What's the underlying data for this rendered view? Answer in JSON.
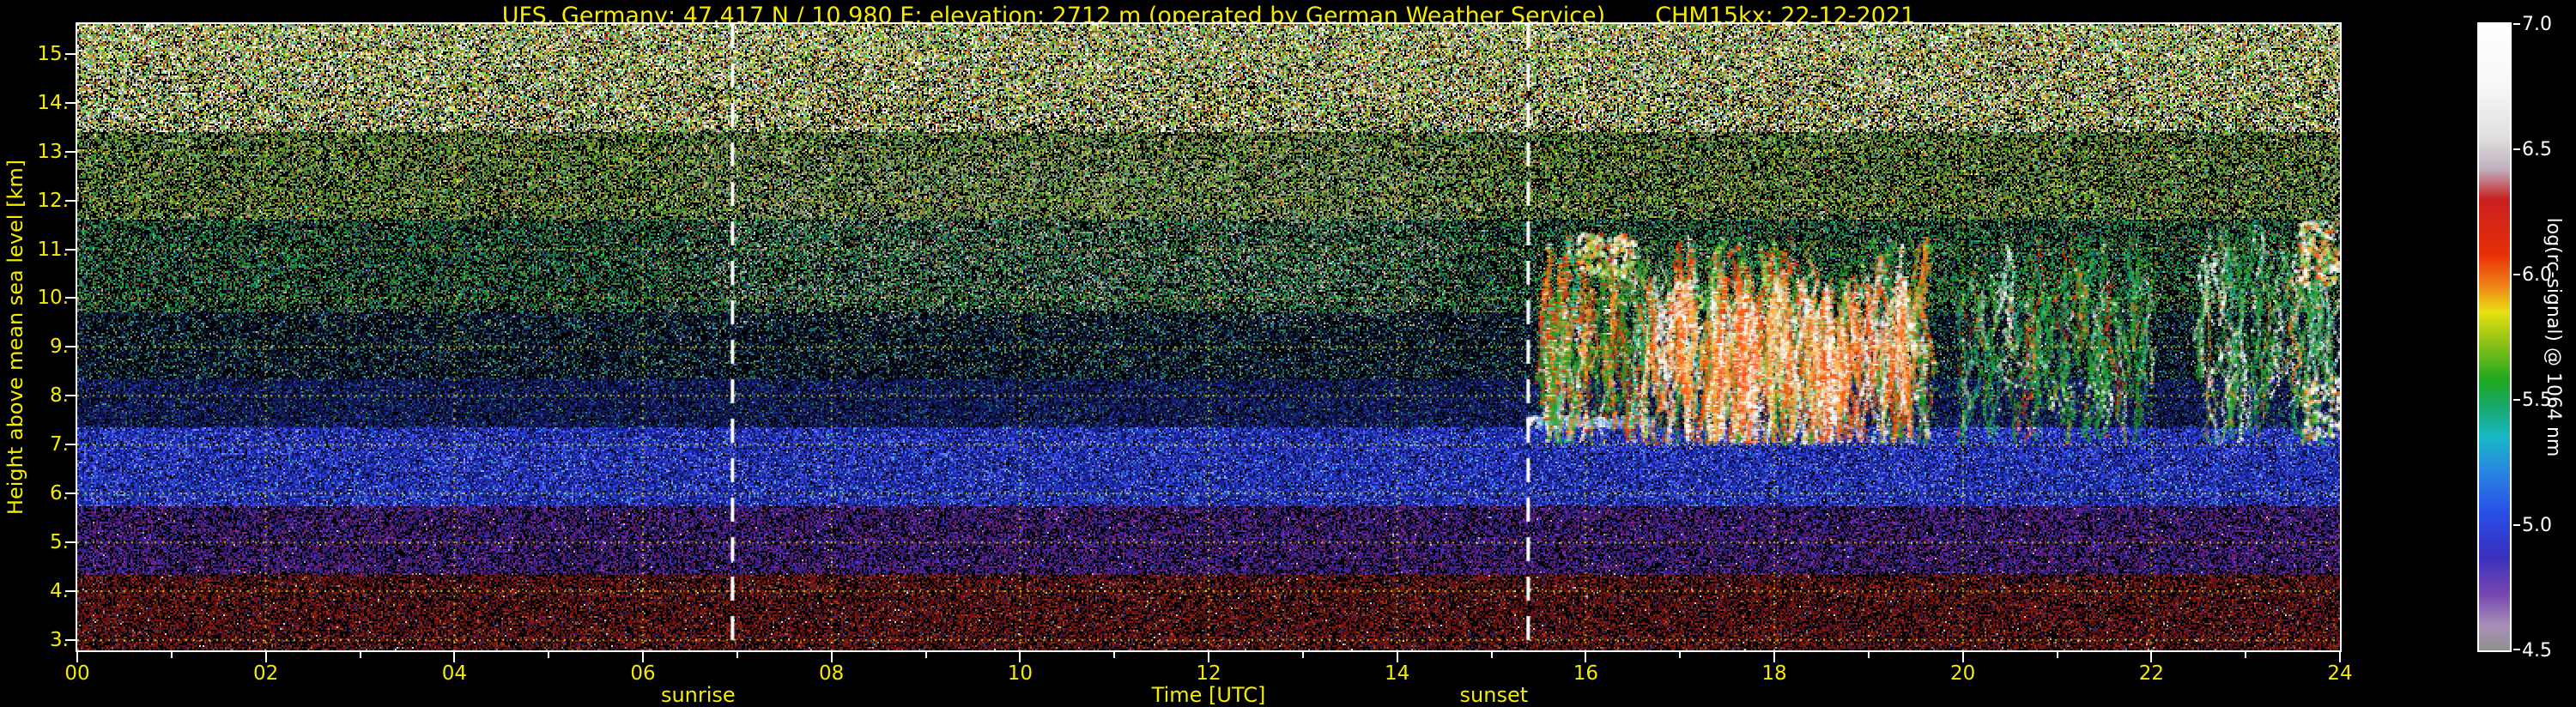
{
  "header": {
    "title": "UFS, Germany; 47.417 N / 10.980 E; elevation: 2712 m  (operated by German Weather Service)",
    "device_date": "CHM15kx: 22-12-2021"
  },
  "colors": {
    "background": "#000000",
    "text_yellow": "#f6ec00",
    "text_white": "#ffffff",
    "frame": "#ffffff",
    "grid": "#eee400",
    "sun_line": "#ffffff"
  },
  "chart_data": {
    "type": "heatmap",
    "title": "UFS, Germany; 47.417 N / 10.980 E; elevation: 2712 m  (operated by German Weather Service)",
    "instrument_date": "CHM15kx: 22-12-2021",
    "xlabel": "Time [UTC]",
    "ylabel": "Height above mean sea level [km]",
    "xlim": [
      0,
      24
    ],
    "ylim": [
      2.79,
      15.61
    ],
    "x_ticks": [
      {
        "v": 0,
        "label": "00"
      },
      {
        "v": 2,
        "label": "02"
      },
      {
        "v": 4,
        "label": "04"
      },
      {
        "v": 6,
        "label": "06"
      },
      {
        "v": 8,
        "label": "08"
      },
      {
        "v": 10,
        "label": "10"
      },
      {
        "v": 12,
        "label": "12"
      },
      {
        "v": 14,
        "label": "14"
      },
      {
        "v": 16,
        "label": "16"
      },
      {
        "v": 18,
        "label": "18"
      },
      {
        "v": 20,
        "label": "20"
      },
      {
        "v": 22,
        "label": "22"
      },
      {
        "v": 24,
        "label": "24"
      }
    ],
    "y_ticks": [
      {
        "v": 15,
        "label": "15."
      },
      {
        "v": 14,
        "label": "14."
      },
      {
        "v": 13,
        "label": "13."
      },
      {
        "v": 12,
        "label": "12."
      },
      {
        "v": 11,
        "label": "11."
      },
      {
        "v": 10,
        "label": "10."
      },
      {
        "v": 9,
        "label": "9."
      },
      {
        "v": 8,
        "label": "8."
      },
      {
        "v": 7,
        "label": "7."
      },
      {
        "v": 6,
        "label": "6."
      },
      {
        "v": 5,
        "label": "5."
      },
      {
        "v": 4,
        "label": "4."
      },
      {
        "v": 3,
        "label": "3."
      }
    ],
    "grid": {
      "style": "dotted",
      "color": "#eee400",
      "x_step_hours": 2,
      "y_step_km": 1
    },
    "sun": {
      "sunrise_label": "sunrise",
      "sunset_label": "sunset",
      "sunrise_utc": 6.95,
      "sunset_utc": 15.39
    },
    "colorbar": {
      "label": "log(rc-signal) @ 1064 nm",
      "range": [
        4.5,
        7.0
      ],
      "ticks": [
        {
          "v": 7.0,
          "label": "7.0"
        },
        {
          "v": 6.5,
          "label": "6.5"
        },
        {
          "v": 6.0,
          "label": "6.0"
        },
        {
          "v": 5.5,
          "label": "5.5"
        },
        {
          "v": 5.0,
          "label": "5.0"
        },
        {
          "v": 4.5,
          "label": "4.5"
        }
      ],
      "stops": [
        [
          4.5,
          "#909090"
        ],
        [
          4.6,
          "#a890b8"
        ],
        [
          4.72,
          "#7848b0"
        ],
        [
          4.88,
          "#3830c0"
        ],
        [
          5.05,
          "#2850e8"
        ],
        [
          5.22,
          "#2888e0"
        ],
        [
          5.35,
          "#18b8c8"
        ],
        [
          5.48,
          "#18a868"
        ],
        [
          5.58,
          "#20a820"
        ],
        [
          5.72,
          "#88c018"
        ],
        [
          5.85,
          "#e8e010"
        ],
        [
          5.95,
          "#f08818"
        ],
        [
          6.08,
          "#e83008"
        ],
        [
          6.3,
          "#c82020"
        ],
        [
          6.42,
          "#c0b0c0"
        ],
        [
          6.55,
          "#e0e0e0"
        ],
        [
          6.75,
          "#f8f8f8"
        ],
        [
          7.0,
          "#ffffff"
        ]
      ]
    },
    "features": [
      "background noise over full column before ~15:30 UTC (clear sky)",
      "broken mid-level cloud and virga from ~15:30 to 24:00 UTC between 7 and 11.5 km",
      "blue aerosol band ~5.8-7.3 km, purple band ~4.3-5.7 km, dark red noise below ~4.3 km",
      "daylight noise enhancement ~09:00-15:00 UTC between ~9.5 and 13.5 km"
    ],
    "render": {
      "seed": 20211222,
      "noise_bands": [
        {
          "h": [
            2.79,
            4.35
          ],
          "density": 0.62,
          "palette": [
            [
              "#701008",
              5
            ],
            [
              "#8a2810",
              2
            ],
            [
              "#500a28",
              2
            ],
            [
              "#282868",
              1
            ],
            [
              "#806050",
              0.5
            ],
            [
              "#b0b0b0",
              0.12
            ]
          ]
        },
        {
          "h": [
            4.35,
            5.75
          ],
          "density": 0.68,
          "palette": [
            [
              "#481878",
              3
            ],
            [
              "#682898",
              2
            ],
            [
              "#2828a0",
              2
            ],
            [
              "#781848",
              1
            ],
            [
              "#181858",
              1.5
            ],
            [
              "#a898c0",
              0.12
            ]
          ]
        },
        {
          "h": [
            5.75,
            7.35
          ],
          "density": 0.93,
          "palette": [
            [
              "#2838c8",
              4
            ],
            [
              "#1828a0",
              3
            ],
            [
              "#4858e0",
              2
            ],
            [
              "#7888e8",
              0.7
            ],
            [
              "#18a0c0",
              0.3
            ],
            [
              "#101878",
              2
            ]
          ]
        },
        {
          "h": [
            7.35,
            8.35
          ],
          "density": 0.78,
          "palette": [
            [
              "#141e6e",
              3
            ],
            [
              "#0c1448",
              3
            ],
            [
              "#2838a0",
              1
            ],
            [
              "#105858",
              0.4
            ],
            [
              "#187838",
              0.3
            ],
            [
              "#606878",
              0.2
            ]
          ]
        },
        {
          "h": [
            8.35,
            9.7
          ],
          "density": 0.58,
          "palette": [
            [
              "#0c1438",
              3
            ],
            [
              "#186038",
              1
            ],
            [
              "#188080",
              0.8
            ],
            [
              "#283878",
              1
            ],
            [
              "#607828",
              0.3
            ],
            [
              "#888888",
              0.25
            ]
          ]
        },
        {
          "h": [
            9.7,
            11.6
          ],
          "density": 0.55,
          "palette": [
            [
              "#187828",
              2
            ],
            [
              "#28a048",
              1
            ],
            [
              "#187878",
              1
            ],
            [
              "#786028",
              0.5
            ],
            [
              "#282868",
              0.8
            ],
            [
              "#909090",
              0.35
            ],
            [
              "#a83828",
              0.2
            ]
          ]
        },
        {
          "h": [
            11.6,
            13.4
          ],
          "density": 0.62,
          "palette": [
            [
              "#388828",
              3
            ],
            [
              "#78a028",
              2
            ],
            [
              "#a08838",
              1
            ],
            [
              "#888888",
              1
            ],
            [
              "#a83828",
              0.4
            ],
            [
              "#38a0a0",
              0.5
            ],
            [
              "#c8c878",
              0.4
            ]
          ]
        },
        {
          "h": [
            13.4,
            15.61
          ],
          "density": 0.72,
          "palette": [
            [
              "#78b028",
              3
            ],
            [
              "#c8c868",
              2
            ],
            [
              "#e0e0e0",
              2
            ],
            [
              "#d09030",
              1
            ],
            [
              "#c04028",
              1
            ],
            [
              "#38c080",
              1
            ],
            [
              "#8888c8",
              0.8
            ],
            [
              "#f8f8f8",
              0.9
            ]
          ]
        }
      ],
      "day_glow": {
        "t": [
          6.0,
          15.2
        ],
        "h": [
          9.3,
          13.6
        ],
        "extra": 0.16,
        "palette": [
          [
            "#a8a8a8",
            1
          ],
          [
            "#c8c8b8",
            0.6
          ],
          [
            "#88a868",
            0.8
          ],
          [
            "#b8c8d8",
            0.4
          ]
        ]
      },
      "clouds": [
        {
          "type": "blob",
          "t": [
            15.45,
            16.7
          ],
          "h": [
            7.38,
            7.6
          ],
          "count": 420,
          "size": [
            1,
            2
          ],
          "palette": [
            [
              "#a0c8ff",
              2
            ],
            [
              "#ffffff",
              1.2
            ],
            [
              "#4878e8",
              1
            ]
          ]
        },
        {
          "type": "blob",
          "t": [
            15.55,
            19.8
          ],
          "h": [
            7.2,
            11.2
          ],
          "count": 700,
          "size": [
            1,
            2
          ],
          "palette": [
            [
              "#28a028",
              2
            ],
            [
              "#70c838",
              1
            ],
            [
              "#18b888",
              0.7
            ]
          ]
        },
        {
          "type": "streaks",
          "count": 300,
          "t": [
            15.55,
            19.6
          ],
          "h_top": [
            8.8,
            11.3
          ],
          "len": [
            0.6,
            3.4
          ],
          "width": [
            1,
            3
          ],
          "wobble": 2.2,
          "palette": [
            [
              "#ffffff",
              2.2
            ],
            [
              "#ff8820",
              2.2
            ],
            [
              "#e03810",
              1.8
            ],
            [
              "#28a028",
              2.4
            ],
            [
              "#b8e858",
              0.8
            ],
            [
              "#18c8a0",
              0.5
            ]
          ]
        },
        {
          "type": "streaks",
          "count": 140,
          "t": [
            16.6,
            19.4
          ],
          "h_top": [
            9.0,
            10.6
          ],
          "len": [
            1.2,
            3.2
          ],
          "width": [
            1,
            3
          ],
          "wobble": 1.6,
          "palette": [
            [
              "#ffffff",
              3
            ],
            [
              "#ffb040",
              2
            ],
            [
              "#ff5010",
              2
            ]
          ]
        },
        {
          "type": "blob",
          "t": [
            15.9,
            16.5
          ],
          "h": [
            10.5,
            11.35
          ],
          "count": 260,
          "size": [
            1,
            3
          ],
          "palette": [
            [
              "#ffffff",
              2
            ],
            [
              "#ffb040",
              1
            ],
            [
              "#78c838",
              1
            ],
            [
              "#e03810",
              0.6
            ]
          ]
        },
        {
          "type": "streaks",
          "count": 110,
          "t": [
            19.95,
            22.0
          ],
          "h_top": [
            8.6,
            11.3
          ],
          "len": [
            0.5,
            2.6
          ],
          "width": [
            1,
            2
          ],
          "wobble": 2.6,
          "palette": [
            [
              "#28a028",
              3
            ],
            [
              "#18b888",
              1.5
            ],
            [
              "#ffffff",
              1.2
            ],
            [
              "#ff8820",
              0.7
            ],
            [
              "#e03810",
              0.5
            ]
          ]
        },
        {
          "type": "blob",
          "t": [
            19.95,
            22.0
          ],
          "h": [
            7.4,
            11.2
          ],
          "count": 260,
          "size": [
            1,
            2
          ],
          "palette": [
            [
              "#28a028",
              2
            ],
            [
              "#70c838",
              1
            ],
            [
              "#188878",
              0.7
            ],
            [
              "#ffffff",
              0.3
            ]
          ]
        },
        {
          "type": "streaks",
          "count": 90,
          "t": [
            22.5,
            24.0
          ],
          "h_top": [
            8.2,
            11.6
          ],
          "len": [
            0.5,
            2.8
          ],
          "width": [
            1,
            2
          ],
          "wobble": 2.4,
          "palette": [
            [
              "#28a028",
              2.5
            ],
            [
              "#18b888",
              1
            ],
            [
              "#ffffff",
              1.6
            ],
            [
              "#ff8820",
              0.8
            ]
          ]
        },
        {
          "type": "blob",
          "t": [
            23.55,
            23.98
          ],
          "h": [
            10.3,
            11.6
          ],
          "count": 220,
          "size": [
            1,
            3
          ],
          "palette": [
            [
              "#ffffff",
              3
            ],
            [
              "#ffb040",
              1.5
            ],
            [
              "#ff5010",
              1
            ],
            [
              "#a0e858",
              0.7
            ]
          ]
        },
        {
          "type": "blob",
          "t": [
            23.6,
            24.0
          ],
          "h": [
            7.15,
            8.4
          ],
          "count": 150,
          "size": [
            1,
            3
          ],
          "palette": [
            [
              "#ffffff",
              3
            ],
            [
              "#ffd080",
              1
            ],
            [
              "#ff6010",
              0.8
            ],
            [
              "#60c838",
              0.6
            ]
          ]
        },
        {
          "type": "blob",
          "t": [
            15.36,
            15.44
          ],
          "h": [
            7.45,
            7.6
          ],
          "count": 16,
          "size": [
            1,
            2
          ],
          "palette": [
            [
              "#ffffff",
              1
            ]
          ]
        },
        {
          "type": "blob",
          "t": [
            22.5,
            24.0
          ],
          "h": [
            7.2,
            11.6
          ],
          "count": 160,
          "size": [
            1,
            2
          ],
          "palette": [
            [
              "#28a028",
              2
            ],
            [
              "#70c838",
              1
            ],
            [
              "#ffffff",
              0.4
            ]
          ]
        },
        {
          "type": "blob",
          "t": [
            20.9,
            21.6
          ],
          "h": [
            7.6,
            8.3
          ],
          "count": 60,
          "size": [
            1,
            2
          ],
          "palette": [
            [
              "#ffffff",
              2
            ],
            [
              "#a0e858",
              1
            ]
          ]
        }
      ]
    }
  }
}
